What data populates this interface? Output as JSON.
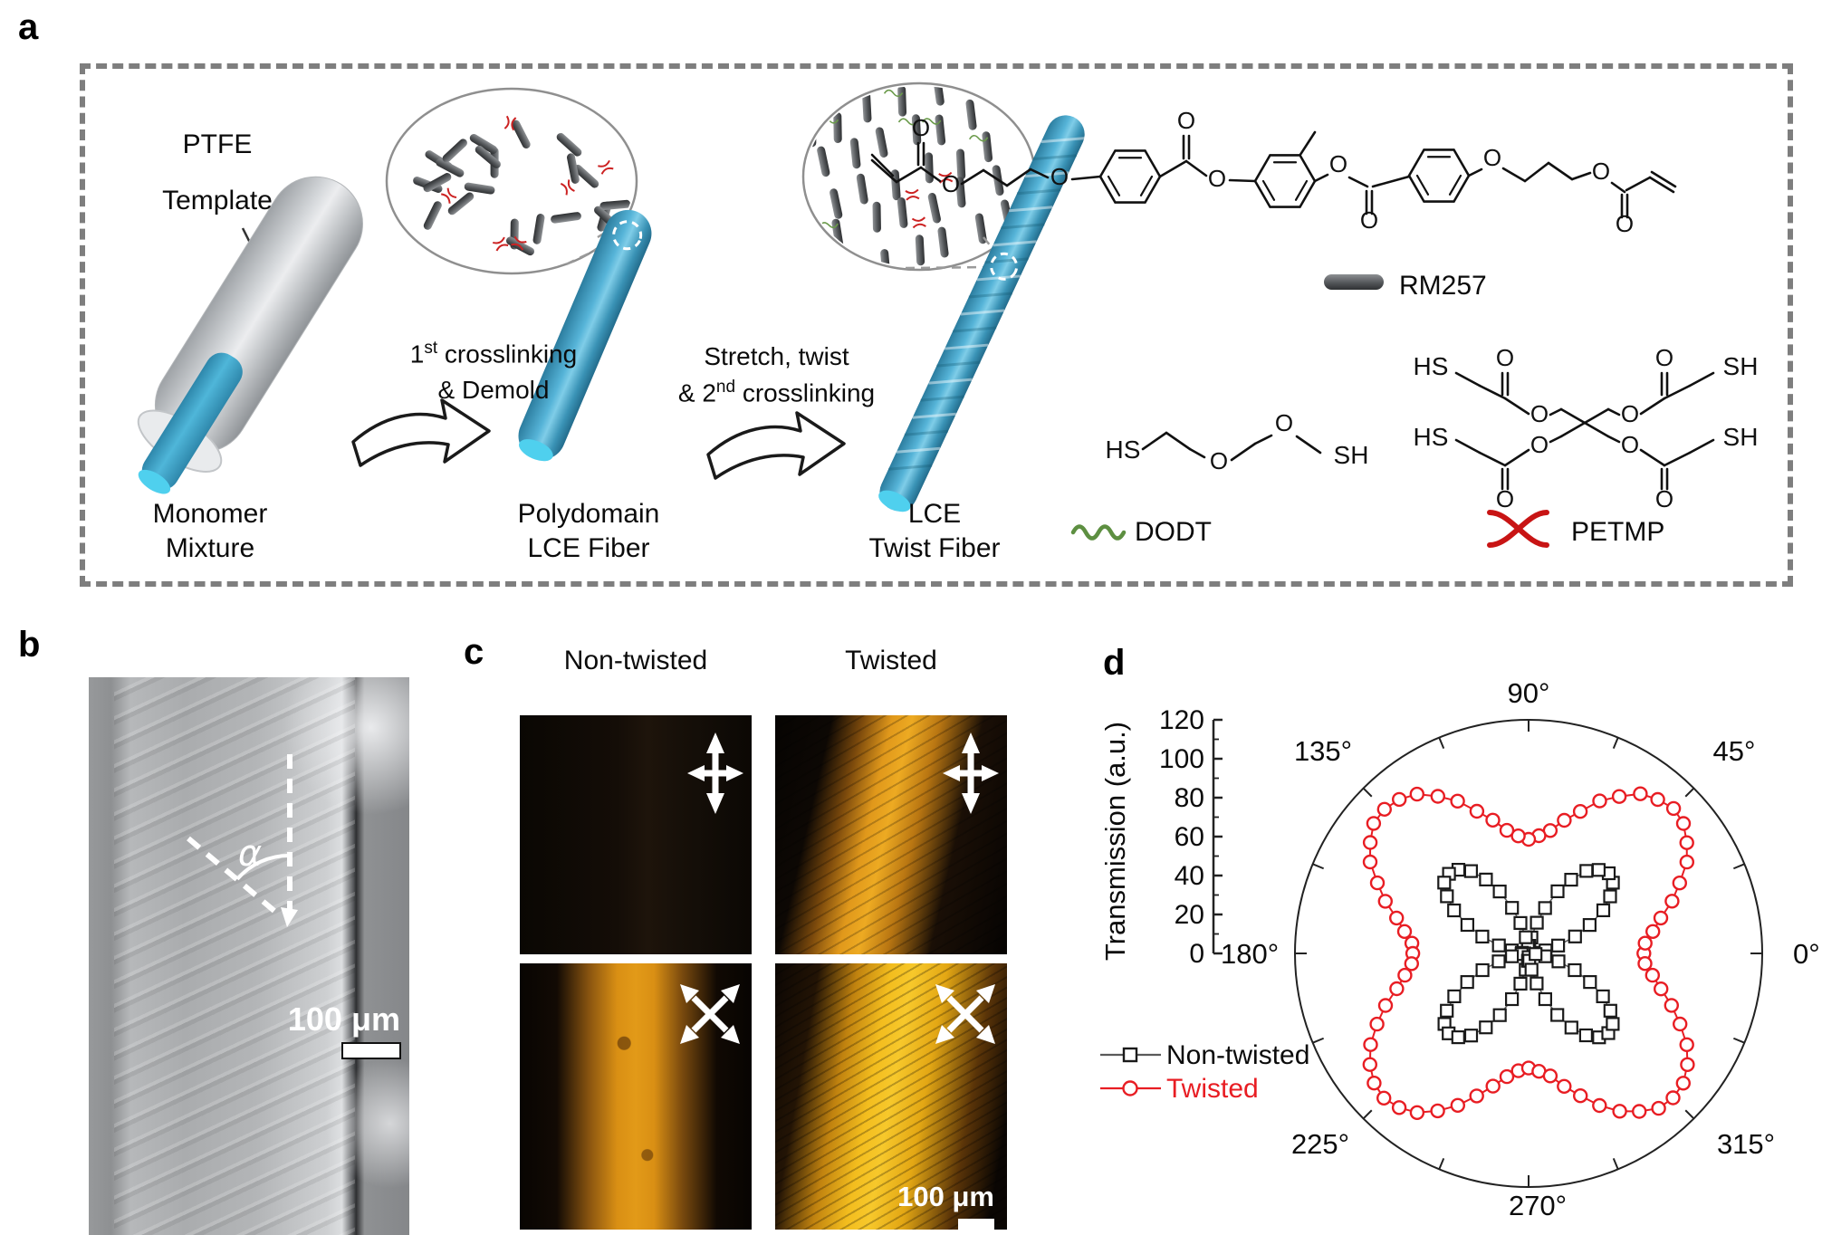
{
  "panel_a": {
    "label": "a",
    "ptfe_template": {
      "line1": "PTFE",
      "line2": "Template"
    },
    "monomer_mixture": {
      "line1": "Monomer",
      "line2": "Mixture"
    },
    "step1": {
      "pre": "1",
      "sup": "st",
      "post": " crosslinking",
      "line2": "& Demold"
    },
    "polydomain": {
      "line1": "Polydomain",
      "line2": "LCE Fiber"
    },
    "step2": {
      "line1": "Stretch, twist",
      "pre": "& 2",
      "sup": "nd",
      "post": " crosslinking"
    },
    "lce_twist": {
      "line1": "LCE",
      "line2": "Twist Fiber"
    },
    "legend": {
      "rm257": "RM257",
      "dodt": "DODT",
      "petmp": "PETMP"
    },
    "atoms": {
      "o": "O",
      "hs": "HS",
      "sh": "SH"
    },
    "colors": {
      "fiber_blue": "#3d9ec2",
      "fiber_cap": "#4fd0ee",
      "dodt_green": "#5d8f41",
      "petmp_red": "#c81414",
      "rod_gray": "#55585b"
    }
  },
  "panel_b": {
    "label": "b",
    "angle_symbol": "α",
    "scale_bar": "100 μm"
  },
  "panel_c": {
    "label": "c",
    "col_left": "Non-twisted",
    "col_right": "Twisted",
    "scale_bar": "100 μm"
  },
  "panel_d": {
    "label": "d",
    "y_axis_label": "Transmission (a.u.)",
    "angle_labels": [
      "0°",
      "45°",
      "90°",
      "135°",
      "180°",
      "225°",
      "270°",
      "315°"
    ]
  },
  "chart_data": {
    "type": "polar_line",
    "radial_label": "Transmission (a.u.)",
    "rlim": [
      0,
      120
    ],
    "r_ticks": [
      0,
      20,
      40,
      60,
      80,
      100,
      120
    ],
    "angle_start_deg": 0,
    "angle_step_deg": 5,
    "legend_position": "left-bottom",
    "series": [
      {
        "name": "Non-twisted",
        "marker": "square",
        "color": "#1a1a1a",
        "line_color": "#5a5a5a",
        "r": [
          2.3,
          3.5,
          8.9,
          15.7,
          25.4,
          34.6,
          44.3,
          51.1,
          56.5,
          58.2,
          56.0,
          51.7,
          43.7,
          35.2,
          24.8,
          16.3,
          8.3,
          3.9,
          1.8,
          3.9,
          8.4,
          16.2,
          24.9,
          35.1,
          43.8,
          51.6,
          56.1,
          57.8,
          56.6,
          51.2,
          44.2,
          34.7,
          25.3,
          15.8,
          8.8,
          3.5,
          2.2,
          3.6,
          8.7,
          15.9,
          25.2,
          34.8,
          44.1,
          51.3,
          56.4,
          58.1,
          56.2,
          51.5,
          43.9,
          35.0,
          25.0,
          16.1,
          8.5,
          3.8,
          1.9,
          3.8,
          8.5,
          16.0,
          25.0,
          34.9,
          44.0,
          51.4,
          56.3,
          57.9,
          56.4,
          51.3,
          44.1,
          34.8,
          25.2,
          15.9,
          8.7,
          3.6
        ]
      },
      {
        "name": "Twisted",
        "marker": "circle",
        "color": "#e81d23",
        "line_color": "#e81d23",
        "r": [
          59.2,
          60.1,
          64.8,
          70.3,
          78.4,
          85.6,
          93.9,
          99.2,
          103.8,
          105.3,
          103.2,
          100.1,
          93.1,
          86.4,
          77.6,
          70.8,
          64.1,
          60.7,
          58.6,
          60.6,
          64.2,
          70.9,
          77.7,
          86.3,
          93.2,
          99.9,
          103.3,
          104.7,
          103.9,
          99.3,
          94.0,
          85.7,
          78.3,
          70.2,
          64.7,
          60.2,
          59.5,
          60.3,
          64.5,
          70.1,
          78.2,
          85.9,
          93.7,
          99.5,
          103.6,
          105.1,
          103.4,
          99.8,
          93.4,
          86.1,
          77.9,
          70.6,
          64.3,
          60.5,
          58.9,
          60.8,
          63.9,
          70.7,
          77.8,
          86.2,
          93.6,
          99.1,
          103.9,
          104.9,
          103.7,
          99.6,
          93.8,
          85.8,
          78.1,
          70.4,
          64.6,
          60.0
        ]
      }
    ]
  }
}
